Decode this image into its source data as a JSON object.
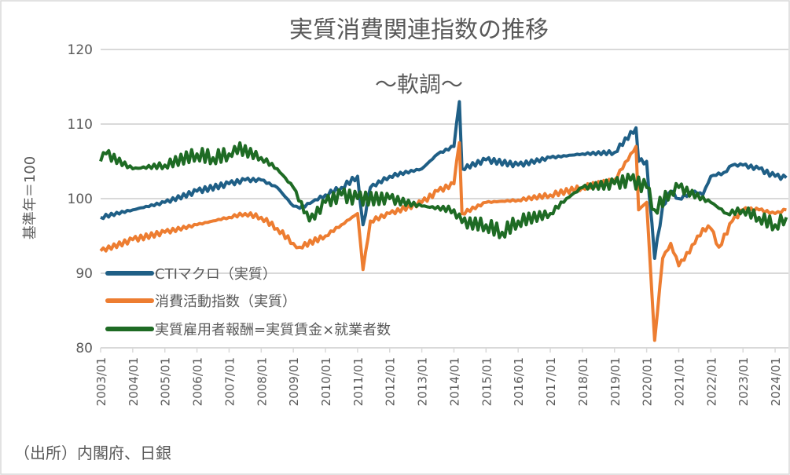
{
  "chart_data": {
    "type": "line",
    "title": "実質消費関連指数の推移",
    "subtitle": "～軟調～",
    "ylabel": "基準年＝100",
    "xlabel": "",
    "source": "（出所）内閣府、日銀",
    "ylim": [
      80,
      120
    ],
    "yticks": [
      80,
      90,
      100,
      110,
      120
    ],
    "xlim": [
      2003.0,
      2024.4
    ],
    "grid": true,
    "legend_position": "bottom-left-inside",
    "xticks": [
      "2003/01",
      "2004/01",
      "2005/01",
      "2006/01",
      "2007/01",
      "2008/01",
      "2009/01",
      "2010/01",
      "2011/01",
      "2012/01",
      "2013/01",
      "2014/01",
      "2015/01",
      "2016/01",
      "2017/01",
      "2018/01",
      "2019/01",
      "2020/01",
      "2021/01",
      "2022/01",
      "2023/01",
      "2024/01"
    ],
    "series": [
      {
        "name": "CTIマクロ（実質）",
        "color": "#1f5f86",
        "x": [
          2003.0,
          2004.0,
          2005.0,
          2006.0,
          2007.0,
          2007.5,
          2008.0,
          2008.5,
          2009.0,
          2009.2,
          2010.0,
          2010.5,
          2011.0,
          2011.17,
          2011.4,
          2012.0,
          2013.0,
          2013.5,
          2014.0,
          2014.17,
          2014.25,
          2015.0,
          2016.0,
          2017.0,
          2018.0,
          2019.0,
          2019.67,
          2019.75,
          2020.0,
          2020.25,
          2020.5,
          2020.75,
          2021.0,
          2021.5,
          2021.75,
          2022.0,
          2022.4,
          2022.67,
          2023.0,
          2023.5,
          2024.0,
          2024.35
        ],
        "values": [
          97.5,
          98.5,
          99.5,
          101,
          102,
          102.5,
          102.5,
          101.5,
          99,
          98.7,
          100.5,
          101.5,
          103,
          96.5,
          101.5,
          103,
          104,
          106,
          107,
          113,
          104,
          105.2,
          104.5,
          105.5,
          106,
          106.2,
          109.5,
          105,
          105,
          92,
          99,
          101,
          100,
          101,
          100.5,
          103,
          103.5,
          104.5,
          104.5,
          104,
          103,
          102.8
        ]
      },
      {
        "name": "消費活動指数（実質）",
        "color": "#ed7d31",
        "x": [
          2003.0,
          2004.0,
          2005.0,
          2006.0,
          2007.0,
          2007.5,
          2008.0,
          2008.5,
          2009.0,
          2009.2,
          2010.0,
          2010.5,
          2011.0,
          2011.17,
          2011.4,
          2012.0,
          2013.0,
          2013.5,
          2014.0,
          2014.17,
          2014.25,
          2015.0,
          2016.0,
          2017.0,
          2018.0,
          2019.0,
          2019.67,
          2019.75,
          2020.0,
          2020.25,
          2020.5,
          2020.75,
          2021.0,
          2021.5,
          2021.75,
          2022.0,
          2022.25,
          2022.67,
          2023.0,
          2023.5,
          2024.0,
          2024.35
        ],
        "values": [
          93,
          94.5,
          95.5,
          96.5,
          97.5,
          98,
          97.5,
          96,
          94,
          93.5,
          95,
          96.5,
          98,
          90.5,
          97,
          98,
          99.5,
          101,
          102,
          107.5,
          98,
          99.5,
          99.8,
          100.5,
          101.5,
          102.5,
          107,
          98.5,
          99.5,
          81,
          92,
          94,
          91,
          94,
          96,
          96,
          93.5,
          97,
          98.5,
          98.5,
          98,
          98.5
        ]
      },
      {
        "name": "実質雇用者報酬=実質賃金×就業者数",
        "color": "#1e6b24",
        "x": [
          2003.0,
          2003.17,
          2004.0,
          2005.0,
          2006.0,
          2006.5,
          2007.0,
          2007.17,
          2008.0,
          2008.5,
          2009.0,
          2009.5,
          2010.0,
          2010.5,
          2011.0,
          2012.0,
          2013.0,
          2014.0,
          2014.25,
          2015.0,
          2015.5,
          2016.0,
          2017.0,
          2017.5,
          2018.0,
          2019.0,
          2019.5,
          2020.0,
          2020.25,
          2020.75,
          2021.0,
          2022.0,
          2022.5,
          2023.0,
          2023.5,
          2024.0,
          2024.35
        ],
        "values": [
          105,
          106,
          104,
          104.5,
          106,
          105.5,
          106,
          107,
          105.5,
          104,
          101.5,
          97,
          99.5,
          100.5,
          100,
          100,
          99,
          98.5,
          96.8,
          96.5,
          95.5,
          97,
          98,
          100,
          101.5,
          102,
          102.5,
          101.5,
          98.5,
          101,
          101.5,
          99.5,
          98,
          98.5,
          97.5,
          96.5,
          97.5
        ]
      }
    ]
  }
}
